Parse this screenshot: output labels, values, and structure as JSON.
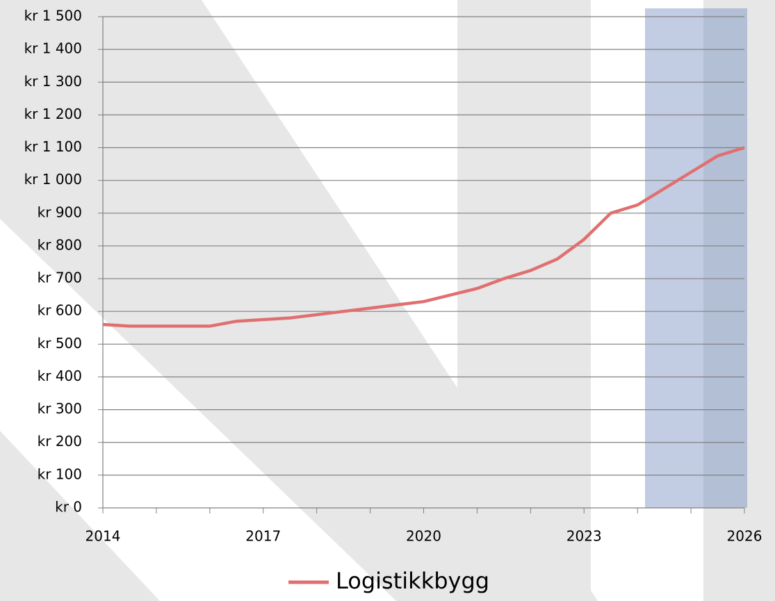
{
  "chart_data": {
    "type": "line",
    "x": [
      2014,
      2014.5,
      2015.5,
      2016,
      2016.5,
      2017.5,
      2018.5,
      2019.5,
      2020,
      2021,
      2021.5,
      2022,
      2022.5,
      2023,
      2023.5,
      2024,
      2024.5,
      2025,
      2025.5,
      2026
    ],
    "series": [
      {
        "name": "Logistikkbygg",
        "color": "#e07070",
        "values": [
          560,
          555,
          555,
          555,
          570,
          580,
          600,
          620,
          630,
          670,
          700,
          725,
          760,
          820,
          900,
          925,
          975,
          1025,
          1075,
          1100
        ]
      }
    ],
    "xlim": [
      2014,
      2026
    ],
    "xticks": [
      2014,
      2017,
      2020,
      2023,
      2026
    ],
    "x_minor_ticks": [
      2014,
      2015,
      2016,
      2017,
      2018,
      2019,
      2020,
      2021,
      2022,
      2023,
      2024,
      2025,
      2026
    ],
    "ylim": [
      0,
      1500
    ],
    "yticks": [
      {
        "value": 0,
        "label": "kr 0"
      },
      {
        "value": 100,
        "label": "kr 100"
      },
      {
        "value": 200,
        "label": "kr 200"
      },
      {
        "value": 300,
        "label": "kr 300"
      },
      {
        "value": 400,
        "label": "kr 400"
      },
      {
        "value": 500,
        "label": "kr 500"
      },
      {
        "value": 600,
        "label": "kr 600"
      },
      {
        "value": 700,
        "label": "kr 700"
      },
      {
        "value": 800,
        "label": "kr 800"
      },
      {
        "value": 900,
        "label": "kr 900"
      },
      {
        "value": 1000,
        "label": "kr 1 000"
      },
      {
        "value": 1100,
        "label": "kr 1 100"
      },
      {
        "value": 1200,
        "label": "kr 1 200"
      },
      {
        "value": 1300,
        "label": "kr 1 300"
      },
      {
        "value": 1400,
        "label": "kr 1 400"
      },
      {
        "value": 1500,
        "label": "kr 1 500"
      }
    ],
    "grid": true,
    "legend": "bottom"
  }
}
